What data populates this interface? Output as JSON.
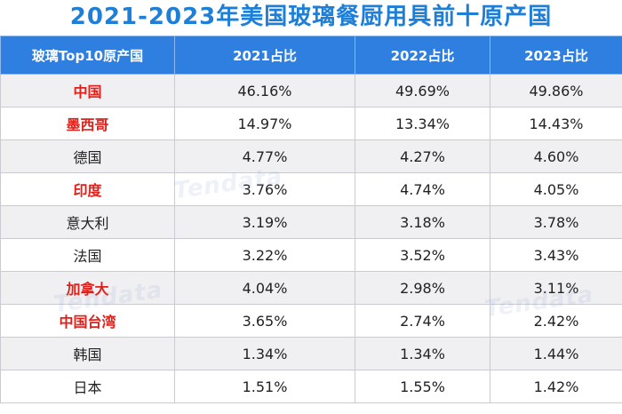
{
  "title": "2021-2023年美国玻璃餐厨用具前十原产国",
  "headers": [
    "玻璃Top10原产国",
    "2021占比",
    "2022占比",
    "2023占比"
  ],
  "rows": [
    {
      "country": "中国",
      "y2021": "46.16%",
      "y2022": "49.69%",
      "y2023": "49.86%",
      "country_highlight": true,
      "y2023_highlight": false
    },
    {
      "country": "墨西哥",
      "y2021": "14.97%",
      "y2022": "13.34%",
      "y2023": "14.43%",
      "country_highlight": true,
      "y2023_highlight": false
    },
    {
      "country": "德国",
      "y2021": "4.77%",
      "y2022": "4.27%",
      "y2023": "4.60%",
      "country_highlight": false,
      "y2023_highlight": false
    },
    {
      "country": "印度",
      "y2021": "3.76%",
      "y2022": "4.74%",
      "y2023": "4.05%",
      "country_highlight": true,
      "y2023_highlight": true
    },
    {
      "country": "意大利",
      "y2021": "3.19%",
      "y2022": "3.18%",
      "y2023": "3.78%",
      "country_highlight": false,
      "y2023_highlight": false
    },
    {
      "country": "法国",
      "y2021": "3.22%",
      "y2022": "3.52%",
      "y2023": "3.43%",
      "country_highlight": false,
      "y2023_highlight": false
    },
    {
      "country": "加拿大",
      "y2021": "4.04%",
      "y2022": "2.98%",
      "y2023": "3.11%",
      "country_highlight": true,
      "y2023_highlight": true
    },
    {
      "country": "中国台湾",
      "y2021": "3.65%",
      "y2022": "2.74%",
      "y2023": "2.42%",
      "country_highlight": true,
      "y2023_highlight": true
    },
    {
      "country": "韩国",
      "y2021": "1.34%",
      "y2022": "1.34%",
      "y2023": "1.44%",
      "country_highlight": false,
      "y2023_highlight": false
    },
    {
      "country": "日本",
      "y2021": "1.51%",
      "y2022": "1.55%",
      "y2023": "1.42%",
      "country_highlight": false,
      "y2023_highlight": false
    }
  ],
  "watermark_text": "Tendata",
  "colors": {
    "title": "#1e7fd8",
    "header_bg": "#2f7fe0",
    "highlight": "#e0201b",
    "alt_row": "#f0f0f2"
  }
}
